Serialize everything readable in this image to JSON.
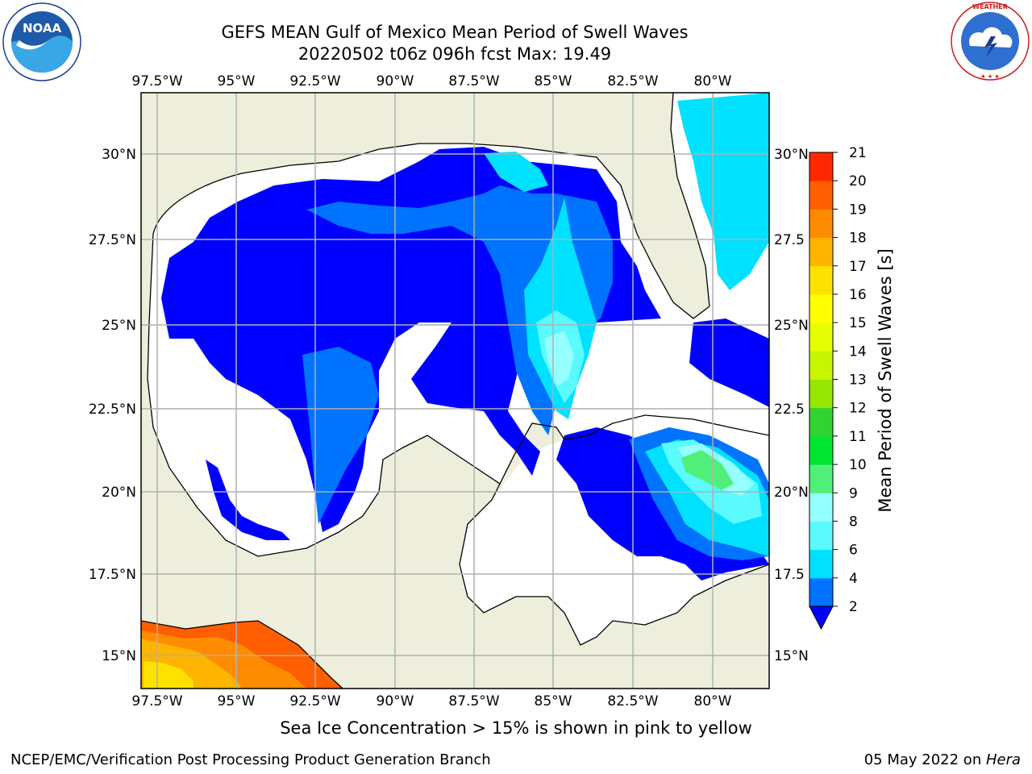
{
  "header": {
    "title_line1": "GEFS MEAN Gulf of Mexico Mean Period of Swell Waves",
    "title_line2": "20220502 t06z 096h fcst   Max: 19.49"
  },
  "logos": {
    "left": {
      "name": "noaa-logo",
      "text": "NOAA",
      "ring_text": "NATIONAL OCEANIC AND ATMOSPHERIC ADMINISTRATION · U.S. DEPARTMENT OF COMMERCE"
    },
    "right": {
      "name": "nws-logo",
      "ring_text": "NATIONAL WEATHER SERVICE"
    }
  },
  "map": {
    "lon_labels": [
      "97.5°W",
      "95°W",
      "92.5°W",
      "90°W",
      "87.5°W",
      "85°W",
      "82.5°W",
      "80°W"
    ],
    "lat_labels": [
      "30°N",
      "27.5°N",
      "25°N",
      "22.5°N",
      "20°N",
      "17.5°N",
      "15°N"
    ],
    "lat_labels_right": [
      "30°N",
      "27.5",
      "25°N",
      "22.5",
      "20°N",
      "17.5",
      "15°N"
    ],
    "colors": {
      "land": "#eeeedd",
      "ocean_blank": "#ffffff",
      "grid": "#b0b0b0"
    }
  },
  "colorbar": {
    "label": "Mean Period of Swell Waves [s]",
    "ticks": [
      "2",
      "4",
      "6",
      "8",
      "9",
      "10",
      "11",
      "12",
      "13",
      "14",
      "15",
      "16",
      "17",
      "18",
      "19",
      "20",
      "21"
    ],
    "colors": [
      "#0073ff",
      "#00e1ff",
      "#5afaff",
      "#96ffff",
      "#50f078",
      "#00e632",
      "#32d232",
      "#96e600",
      "#c8f500",
      "#e6ff00",
      "#ffff00",
      "#ffe100",
      "#ffb400",
      "#ff8c00",
      "#ff5f00",
      "#ff2800"
    ],
    "extend_color": "#0000ff"
  },
  "footer": {
    "note": "Sea Ice Concentration > 15% is shown in pink to yellow",
    "credit": "NCEP/EMC/Verification Post Processing Product Generation Branch",
    "date": "05 May 2022 on ",
    "machine": "Hera"
  }
}
